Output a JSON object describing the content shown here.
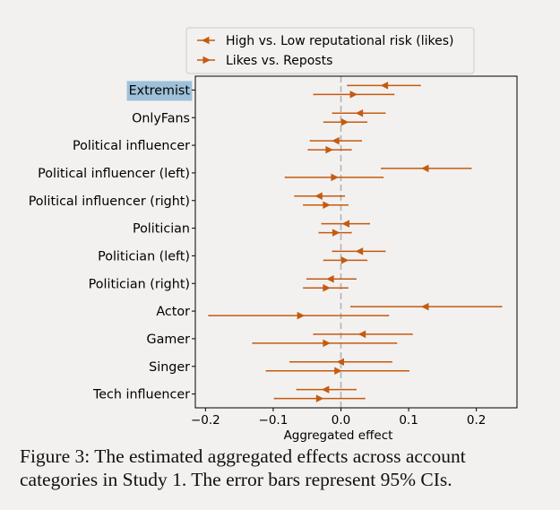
{
  "chart_data": {
    "type": "scatter",
    "title": "",
    "xlabel": "Aggregated effect",
    "ylabel": "",
    "xlim": [
      -0.215,
      0.26
    ],
    "xticks": [
      -0.2,
      -0.1,
      0.0,
      0.1,
      0.2
    ],
    "xtick_labels": [
      "−0.2",
      "−0.1",
      "0.0",
      "0.1",
      "0.2"
    ],
    "reference_line": 0.0,
    "grid": false,
    "legend_position": "top-center (above plot)",
    "highlighted_category": "Extremist",
    "categories": [
      "Extremist",
      "OnlyFans",
      "Political influencer",
      "Political influencer (left)",
      "Political influencer (right)",
      "Politician",
      "Politician (left)",
      "Politician (right)",
      "Actor",
      "Gamer",
      "Singer",
      "Tech influencer"
    ],
    "series": [
      {
        "name": "High vs. Low reputational risk (likes)",
        "marker": "left-triangle",
        "color": "#c55a11",
        "estimates": [
          0.065,
          0.028,
          -0.007,
          0.125,
          -0.032,
          0.008,
          0.028,
          -0.015,
          0.125,
          0.032,
          0.0,
          -0.022
        ],
        "ci_lower": [
          0.01,
          -0.012,
          -0.045,
          0.06,
          -0.068,
          -0.028,
          -0.012,
          -0.05,
          0.015,
          -0.04,
          -0.075,
          -0.065
        ],
        "ci_upper": [
          0.117,
          0.065,
          0.03,
          0.192,
          0.005,
          0.042,
          0.065,
          0.022,
          0.237,
          0.105,
          0.075,
          0.022
        ]
      },
      {
        "name": "Likes vs. Reposts",
        "marker": "right-triangle",
        "color": "#c55a11",
        "estimates": [
          0.018,
          0.005,
          -0.018,
          -0.01,
          -0.022,
          -0.008,
          0.005,
          -0.022,
          -0.06,
          -0.022,
          -0.005,
          -0.032
        ],
        "ci_lower": [
          -0.04,
          -0.025,
          -0.048,
          -0.082,
          -0.055,
          -0.032,
          -0.025,
          -0.055,
          -0.195,
          -0.13,
          -0.11,
          -0.098
        ],
        "ci_upper": [
          0.078,
          0.038,
          0.015,
          0.062,
          0.01,
          0.015,
          0.038,
          0.01,
          0.07,
          0.082,
          0.1,
          0.035
        ]
      }
    ]
  },
  "caption": "Figure 3: The estimated aggregated effects across account categories in Study 1. The error bars represent 95% CIs."
}
